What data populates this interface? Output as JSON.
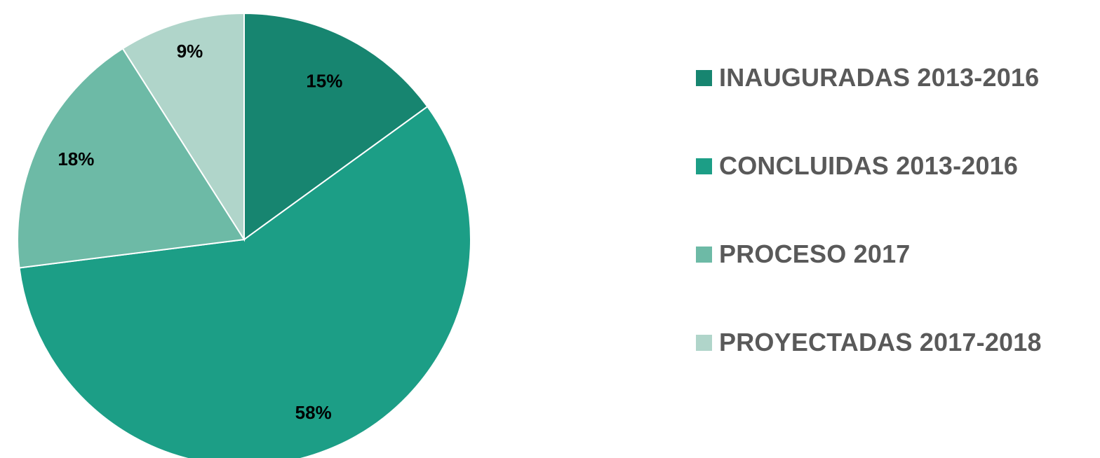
{
  "chart_data": {
    "type": "pie",
    "title": "",
    "start_angle_deg": 0,
    "direction": "clockwise",
    "legend_position": "right",
    "slices": [
      {
        "name": "INAUGURADAS 2013-2016",
        "value": 15,
        "label": "15%",
        "color": "#178570"
      },
      {
        "name": "CONCLUIDAS 2013-2016",
        "value": 58,
        "label": "58%",
        "color": "#1c9e86"
      },
      {
        "name": "PROCESO 2017",
        "value": 18,
        "label": "18%",
        "color": "#6dbaa6"
      },
      {
        "name": "PROYECTADAS 2017-2018",
        "value": 9,
        "label": "9%",
        "color": "#b0d5ca"
      }
    ]
  }
}
